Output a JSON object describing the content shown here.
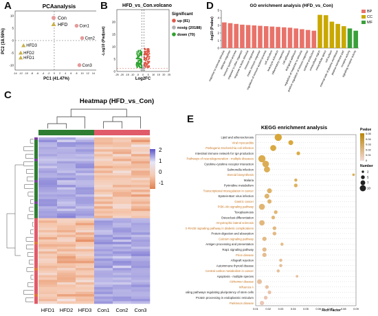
{
  "panel_labels": {
    "a": "A",
    "b": "B",
    "c": "C",
    "d": "D",
    "e": "E"
  },
  "chart_data": [
    {
      "id": "pca",
      "type": "scatter",
      "title": "PCAanalysis",
      "xlabel": "PC1 (41.47%)",
      "ylabel": "PC2 (18.59%)",
      "xlim": [
        -14,
        16
      ],
      "ylim": [
        -12,
        12
      ],
      "xticks": [
        "-14",
        "-12",
        "-10",
        "-8",
        "-6",
        "-4",
        "-2",
        "0",
        "2",
        "4",
        "6",
        "8",
        "10",
        "12",
        "14",
        "16"
      ],
      "yticks": [
        "10",
        "5",
        "0",
        "-5",
        "-10"
      ],
      "legend": [
        "Con",
        "HFD"
      ],
      "colors": {
        "Con": "#e79a9a",
        "HFD": "#c9b04a"
      },
      "points": [
        {
          "label": "Con1",
          "group": "Con",
          "x": 8,
          "y": 6
        },
        {
          "label": "Con2",
          "group": "Con",
          "x": 10,
          "y": 1
        },
        {
          "label": "Con3",
          "group": "Con",
          "x": 9,
          "y": -10
        },
        {
          "label": "HFD3",
          "group": "HFD",
          "x": -11,
          "y": -2
        },
        {
          "label": "HFD2",
          "group": "HFD",
          "x": -12,
          "y": -5
        },
        {
          "label": "HFD1",
          "group": "HFD",
          "x": -12,
          "y": -7
        }
      ]
    },
    {
      "id": "volcano",
      "type": "scatter",
      "title": "HFD_vs_Con.volcano",
      "xlabel": "Log2FC",
      "ylabel": "-Log10 (Padjust)",
      "xlim": [
        -25,
        25
      ],
      "ylim": [
        0,
        25
      ],
      "xticks": [
        "-25",
        "-20",
        "-15",
        "-10",
        "-5",
        "0",
        "5",
        "10",
        "15",
        "20",
        "25"
      ],
      "yticks": [
        "20",
        "15",
        "10",
        "5",
        "0"
      ],
      "legend_title": "Significant",
      "legend": [
        {
          "label": "up (81)",
          "color": "#e05a4a"
        },
        {
          "label": "nosig (20188)",
          "color": "#b0b0b0"
        },
        {
          "label": "down (70)",
          "color": "#2ea22e"
        }
      ]
    },
    {
      "id": "go",
      "type": "bar",
      "title": "GO enrichment analysis (HFD_vs_Con)",
      "ylabel": "-log10 (Pvalue)",
      "ylim": [
        0,
        5
      ],
      "yticks": [
        "5",
        "4",
        "3",
        "2",
        "1",
        "0"
      ],
      "legend": [
        {
          "label": "BP",
          "color": "#e8736a"
        },
        {
          "label": "CC",
          "color": "#c9a800"
        },
        {
          "label": "MF",
          "color": "#3aa03a"
        }
      ],
      "categories": [
        "response to external stimulus",
        "defense response",
        "immune system process",
        "response to other organism",
        "response to biotic stimulus",
        "immune response",
        "innate immune response",
        "regulation of immune system process",
        "cell activation",
        "leukocyte activation",
        "inflammatory response",
        "cell adhesion",
        "biological adhesion",
        "regulation of response to stimulus",
        "positive regulation of immune response",
        "cytokine production",
        "extracellular region",
        "extracellular space",
        "cell surface",
        "external side of plasma membrane",
        "plasma membrane part",
        "receptor activity",
        "signaling receptor activity"
      ],
      "groups": [
        "BP",
        "BP",
        "BP",
        "BP",
        "BP",
        "BP",
        "BP",
        "BP",
        "BP",
        "BP",
        "BP",
        "BP",
        "BP",
        "BP",
        "BP",
        "BP",
        "CC",
        "CC",
        "CC",
        "CC",
        "CC",
        "MF",
        "MF"
      ],
      "values": [
        3.4,
        3.3,
        3.2,
        3.1,
        3.05,
        3.0,
        2.95,
        2.9,
        2.85,
        2.8,
        2.75,
        2.7,
        2.6,
        2.5,
        2.4,
        2.3,
        4.4,
        4.35,
        3.5,
        3.2,
        2.9,
        2.6,
        2.3
      ]
    },
    {
      "id": "heatmap",
      "type": "heatmap",
      "title": "Heatmap (HFD_vs_Con)",
      "columns": [
        "HFD1",
        "HFD2",
        "HFD3",
        "Con1",
        "Con2",
        "Con3"
      ],
      "colorbar_ticks": [
        "2",
        "1",
        "0",
        "-1"
      ],
      "colorbar_colors": [
        "#5a55c8",
        "#e6e6f6",
        "#f4c9b0",
        "#e08050"
      ],
      "group_colors": {
        "HFD": "#2e7d32",
        "Con": "#e05a6a"
      }
    },
    {
      "id": "kegg",
      "type": "scatter",
      "title": "KEGG enrichment analysis",
      "xlabel": "Rich Factor",
      "xlim": [
        0.01,
        0.09
      ],
      "xticks": [
        "0.01",
        "0.02",
        "0.03",
        "0.04",
        "0.05",
        "0.06",
        "0.07",
        "0.08",
        "0.09"
      ],
      "pvalue_title": "Pvalue",
      "pvalue_ticks": [
        "0.05",
        "0.04",
        "0.03",
        "0.02",
        "0.01",
        "0"
      ],
      "number_title": "Number",
      "number_ticks": [
        "2",
        "5",
        "7",
        "10"
      ],
      "terms": [
        {
          "name": "Lipid and atherosclerosis",
          "x": 0.028,
          "n": 10,
          "p": 0.002
        },
        {
          "name": "Viral myocarditis",
          "x": 0.038,
          "n": 6,
          "p": 0.004
        },
        {
          "name": "Pathogenic Escherichia coli infection",
          "x": 0.024,
          "n": 8,
          "p": 0.006
        },
        {
          "name": "Intestinal immune network for IgA production",
          "x": 0.044,
          "n": 4,
          "p": 0.008
        },
        {
          "name": "Pathways of neurodegeneration - multiple diseases",
          "x": 0.015,
          "n": 10,
          "p": 0.01
        },
        {
          "name": "Cytokine-cytokine receptor interaction",
          "x": 0.018,
          "n": 9,
          "p": 0.012
        },
        {
          "name": "Salmonella infection",
          "x": 0.019,
          "n": 8,
          "p": 0.013
        },
        {
          "name": "Steroid biosynthesis",
          "x": 0.088,
          "n": 2,
          "p": 0.015
        },
        {
          "name": "Malaria",
          "x": 0.042,
          "n": 3,
          "p": 0.016
        },
        {
          "name": "Pyrimidine metabolism",
          "x": 0.042,
          "n": 4,
          "p": 0.018
        },
        {
          "name": "Transcriptional misregulation in cancer",
          "x": 0.021,
          "n": 6,
          "p": 0.02
        },
        {
          "name": "Epstein-Barr virus infection",
          "x": 0.019,
          "n": 6,
          "p": 0.021
        },
        {
          "name": "Gastric cancer",
          "x": 0.021,
          "n": 5,
          "p": 0.022
        },
        {
          "name": "PI3K-Akt signaling pathway",
          "x": 0.015,
          "n": 8,
          "p": 0.023
        },
        {
          "name": "Toxoplasmosis",
          "x": 0.026,
          "n": 4,
          "p": 0.024
        },
        {
          "name": "Osteoclast differentiation",
          "x": 0.024,
          "n": 4,
          "p": 0.025
        },
        {
          "name": "Amyotrophic lateral sclerosis",
          "x": 0.015,
          "n": 7,
          "p": 0.027
        },
        {
          "name": "AGE-RAGE signaling pathway in diabetic complications",
          "x": 0.025,
          "n": 4,
          "p": 0.028
        },
        {
          "name": "Protein digestion and absorption",
          "x": 0.025,
          "n": 4,
          "p": 0.029
        },
        {
          "name": "Calcium signaling pathway",
          "x": 0.017,
          "n": 5,
          "p": 0.03
        },
        {
          "name": "Antigen processing and presentation",
          "x": 0.031,
          "n": 3,
          "p": 0.031
        },
        {
          "name": "Rap1 signaling pathway",
          "x": 0.017,
          "n": 5,
          "p": 0.033
        },
        {
          "name": "Prion disease",
          "x": 0.017,
          "n": 5,
          "p": 0.034
        },
        {
          "name": "Allograft rejection",
          "x": 0.03,
          "n": 3,
          "p": 0.035
        },
        {
          "name": "Autoimmune thyroid disease",
          "x": 0.03,
          "n": 3,
          "p": 0.036
        },
        {
          "name": "Central carbon metabolism in cancer",
          "x": 0.028,
          "n": 3,
          "p": 0.037
        },
        {
          "name": "Apoptosis - multiple species",
          "x": 0.043,
          "n": 2,
          "p": 0.038
        },
        {
          "name": "Alzheimer disease",
          "x": 0.013,
          "n": 6,
          "p": 0.04
        },
        {
          "name": "Influenza A",
          "x": 0.019,
          "n": 4,
          "p": 0.041
        },
        {
          "name": "Signaling pathways regulating pluripotency of stem cells",
          "x": 0.021,
          "n": 4,
          "p": 0.043
        },
        {
          "name": "Protein processing in endoplasmic reticulum",
          "x": 0.018,
          "n": 4,
          "p": 0.045
        },
        {
          "name": "Parkinson disease",
          "x": 0.015,
          "n": 5,
          "p": 0.048
        }
      ]
    }
  ]
}
